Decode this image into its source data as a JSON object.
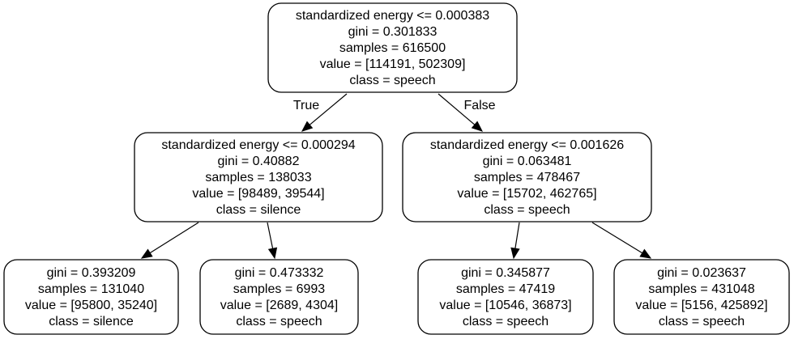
{
  "tree": {
    "nodes": [
      {
        "id": "root",
        "lines": [
          "standardized energy <= 0.000383",
          "gini = 0.301833",
          "samples = 616500",
          "value = [114191, 502309]",
          "class = speech"
        ]
      },
      {
        "id": "left",
        "lines": [
          "standardized energy <= 0.000294",
          "gini = 0.40882",
          "samples = 138033",
          "value = [98489, 39544]",
          "class = silence"
        ]
      },
      {
        "id": "right",
        "lines": [
          "standardized energy <= 0.001626",
          "gini = 0.063481",
          "samples = 478467",
          "value = [15702, 462765]",
          "class = speech"
        ]
      },
      {
        "id": "leaf-1",
        "lines": [
          "gini = 0.393209",
          "samples = 131040",
          "value = [95800, 35240]",
          "class = silence"
        ]
      },
      {
        "id": "leaf-2",
        "lines": [
          "gini = 0.473332",
          "samples = 6993",
          "value = [2689, 4304]",
          "class = speech"
        ]
      },
      {
        "id": "leaf-3",
        "lines": [
          "gini = 0.345877",
          "samples = 47419",
          "value = [10546, 36873]",
          "class = speech"
        ]
      },
      {
        "id": "leaf-4",
        "lines": [
          "gini = 0.023637",
          "samples = 431048",
          "value = [5156, 425892]",
          "class = speech"
        ]
      }
    ],
    "edges": [
      {
        "from": "root",
        "to": "left",
        "label": "True"
      },
      {
        "from": "root",
        "to": "right",
        "label": "False"
      },
      {
        "from": "left",
        "to": "leaf-1",
        "label": ""
      },
      {
        "from": "left",
        "to": "leaf-2",
        "label": ""
      },
      {
        "from": "right",
        "to": "leaf-3",
        "label": ""
      },
      {
        "from": "right",
        "to": "leaf-4",
        "label": ""
      }
    ]
  }
}
